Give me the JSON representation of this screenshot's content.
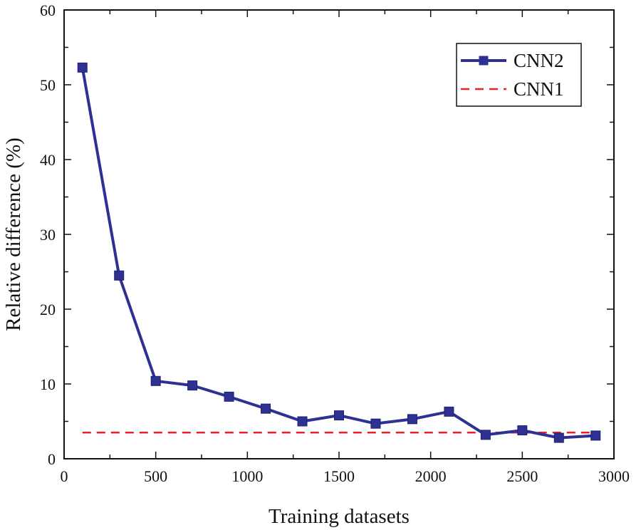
{
  "chart_data": {
    "type": "line",
    "title": "",
    "xlabel": "Training datasets",
    "ylabel": "Relative difference (%)",
    "xlim": [
      0,
      3000
    ],
    "ylim": [
      0,
      60
    ],
    "xticks": [
      0,
      500,
      1000,
      1500,
      2000,
      2500,
      3000
    ],
    "yticks": [
      0,
      10,
      20,
      30,
      40,
      50,
      60
    ],
    "legend_position": "top-right",
    "series": [
      {
        "name": "CNN2",
        "style": "solid-line-square-markers",
        "color": "#2e3192",
        "x": [
          100,
          300,
          500,
          700,
          900,
          1100,
          1300,
          1500,
          1700,
          1900,
          2100,
          2300,
          2500,
          2700,
          2900
        ],
        "y": [
          52.3,
          24.5,
          10.4,
          9.8,
          8.3,
          6.7,
          5.0,
          5.8,
          4.7,
          5.3,
          6.3,
          3.2,
          3.8,
          2.8,
          3.1
        ]
      },
      {
        "name": "CNN1",
        "style": "dashed-line",
        "color": "#e8202a",
        "x": [
          100,
          2900
        ],
        "y": [
          3.5,
          3.5
        ]
      }
    ]
  }
}
